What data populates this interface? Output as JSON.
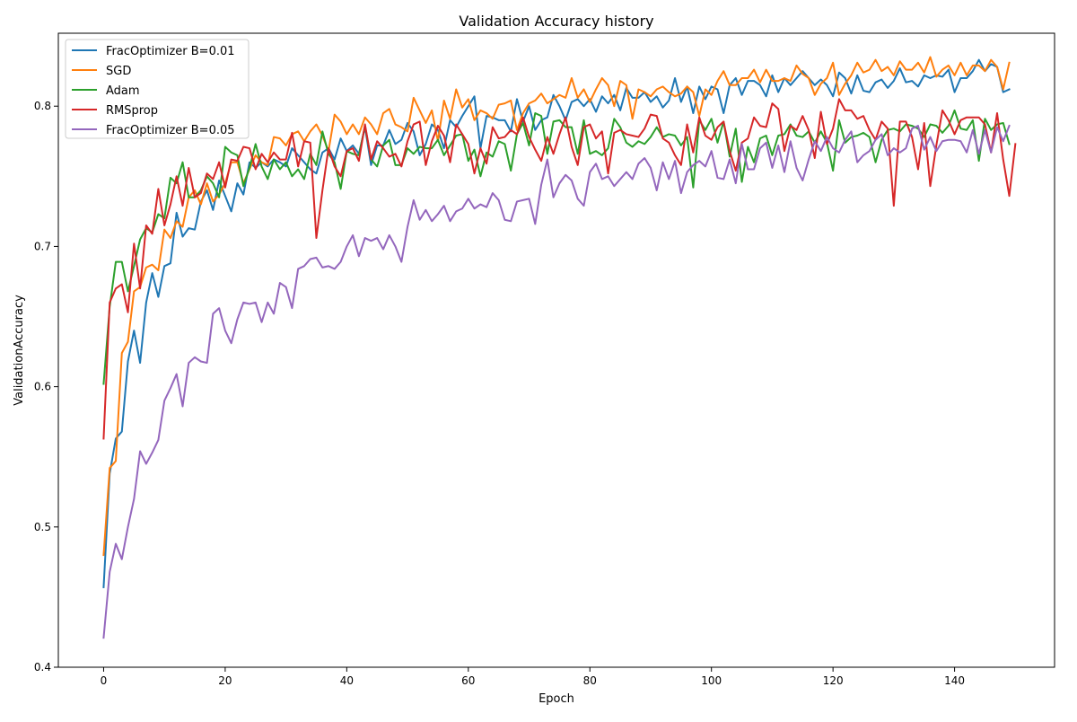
{
  "chart_data": {
    "type": "line",
    "title": "Validation Accuracy history",
    "xlabel": "Epoch",
    "ylabel": "ValidationAccuracy",
    "xlim": [
      -7.45,
      156.45
    ],
    "ylim": [
      0.4,
      0.852
    ],
    "xticks": [
      0,
      20,
      40,
      60,
      80,
      100,
      120,
      140
    ],
    "yticks": [
      0.4,
      0.5,
      0.6,
      0.7,
      0.8
    ],
    "xtick_labels": [
      "0",
      "20",
      "40",
      "60",
      "80",
      "100",
      "120",
      "140"
    ],
    "ytick_labels": [
      "0.4",
      "0.5",
      "0.6",
      "0.7",
      "0.8"
    ],
    "grid": false,
    "legend_position": "upper-left",
    "series": [
      {
        "name": "FracOptimizer B=0.01",
        "color": "#1f77b4",
        "values": [
          0.457,
          0.538,
          0.563,
          0.568,
          0.618,
          0.64,
          0.617,
          0.66,
          0.681,
          0.664,
          0.686,
          0.688,
          0.724,
          0.707,
          0.713,
          0.712,
          0.732,
          0.74,
          0.726,
          0.747,
          0.736,
          0.725,
          0.745,
          0.737,
          0.76,
          0.756,
          0.76,
          0.757,
          0.762,
          0.76,
          0.757,
          0.77,
          0.765,
          0.76,
          0.755,
          0.752,
          0.767,
          0.77,
          0.762,
          0.777,
          0.768,
          0.772,
          0.766,
          0.785,
          0.758,
          0.772,
          0.772,
          0.783,
          0.773,
          0.776,
          0.788,
          0.782,
          0.765,
          0.773,
          0.787,
          0.783,
          0.77,
          0.79,
          0.785,
          0.793,
          0.8,
          0.807,
          0.77,
          0.793,
          0.792,
          0.79,
          0.79,
          0.782,
          0.805,
          0.789,
          0.8,
          0.783,
          0.79,
          0.792,
          0.808,
          0.8,
          0.79,
          0.803,
          0.805,
          0.8,
          0.805,
          0.796,
          0.807,
          0.802,
          0.808,
          0.797,
          0.813,
          0.806,
          0.806,
          0.81,
          0.803,
          0.807,
          0.799,
          0.804,
          0.82,
          0.803,
          0.814,
          0.795,
          0.814,
          0.805,
          0.814,
          0.812,
          0.795,
          0.815,
          0.82,
          0.808,
          0.818,
          0.818,
          0.815,
          0.807,
          0.822,
          0.81,
          0.82,
          0.815,
          0.82,
          0.825,
          0.82,
          0.815,
          0.819,
          0.815,
          0.807,
          0.824,
          0.82,
          0.809,
          0.822,
          0.811,
          0.81,
          0.817,
          0.819,
          0.813,
          0.818,
          0.827,
          0.817,
          0.818,
          0.814,
          0.822,
          0.82,
          0.822,
          0.821,
          0.826,
          0.81,
          0.82,
          0.82,
          0.825,
          0.833,
          0.825,
          0.83,
          0.828,
          0.81,
          0.812
        ]
      },
      {
        "name": "SGD",
        "color": "#ff7f0e",
        "values": [
          0.48,
          0.542,
          0.547,
          0.624,
          0.632,
          0.668,
          0.671,
          0.685,
          0.687,
          0.683,
          0.712,
          0.706,
          0.718,
          0.714,
          0.735,
          0.74,
          0.73,
          0.745,
          0.732,
          0.737,
          0.745,
          0.76,
          0.76,
          0.745,
          0.755,
          0.765,
          0.76,
          0.758,
          0.778,
          0.777,
          0.772,
          0.78,
          0.782,
          0.775,
          0.782,
          0.787,
          0.779,
          0.768,
          0.794,
          0.789,
          0.78,
          0.787,
          0.78,
          0.792,
          0.787,
          0.78,
          0.795,
          0.798,
          0.787,
          0.785,
          0.782,
          0.806,
          0.797,
          0.788,
          0.797,
          0.775,
          0.804,
          0.791,
          0.812,
          0.799,
          0.805,
          0.79,
          0.797,
          0.795,
          0.791,
          0.801,
          0.802,
          0.804,
          0.783,
          0.795,
          0.802,
          0.804,
          0.809,
          0.802,
          0.805,
          0.808,
          0.806,
          0.82,
          0.806,
          0.812,
          0.803,
          0.812,
          0.82,
          0.815,
          0.8,
          0.818,
          0.815,
          0.791,
          0.812,
          0.81,
          0.807,
          0.812,
          0.814,
          0.81,
          0.807,
          0.809,
          0.814,
          0.81,
          0.793,
          0.812,
          0.808,
          0.818,
          0.825,
          0.815,
          0.815,
          0.82,
          0.82,
          0.826,
          0.817,
          0.826,
          0.818,
          0.818,
          0.82,
          0.818,
          0.829,
          0.823,
          0.82,
          0.808,
          0.816,
          0.82,
          0.831,
          0.808,
          0.816,
          0.822,
          0.831,
          0.824,
          0.826,
          0.833,
          0.825,
          0.828,
          0.822,
          0.832,
          0.826,
          0.826,
          0.831,
          0.824,
          0.835,
          0.821,
          0.826,
          0.829,
          0.822,
          0.831,
          0.822,
          0.829,
          0.829,
          0.825,
          0.833,
          0.828,
          0.812,
          0.831
        ]
      },
      {
        "name": "Adam",
        "color": "#2ca02c",
        "values": [
          0.602,
          0.657,
          0.689,
          0.689,
          0.668,
          0.686,
          0.705,
          0.713,
          0.71,
          0.723,
          0.72,
          0.749,
          0.745,
          0.76,
          0.735,
          0.735,
          0.74,
          0.75,
          0.745,
          0.735,
          0.771,
          0.767,
          0.765,
          0.743,
          0.756,
          0.773,
          0.757,
          0.748,
          0.762,
          0.755,
          0.76,
          0.75,
          0.755,
          0.748,
          0.766,
          0.758,
          0.782,
          0.766,
          0.76,
          0.741,
          0.768,
          0.766,
          0.765,
          0.786,
          0.762,
          0.757,
          0.772,
          0.776,
          0.758,
          0.758,
          0.77,
          0.766,
          0.771,
          0.77,
          0.77,
          0.776,
          0.765,
          0.772,
          0.779,
          0.78,
          0.761,
          0.769,
          0.75,
          0.767,
          0.764,
          0.775,
          0.773,
          0.754,
          0.78,
          0.788,
          0.772,
          0.795,
          0.793,
          0.766,
          0.789,
          0.79,
          0.785,
          0.785,
          0.766,
          0.79,
          0.766,
          0.768,
          0.765,
          0.77,
          0.791,
          0.785,
          0.774,
          0.771,
          0.775,
          0.773,
          0.778,
          0.785,
          0.778,
          0.78,
          0.779,
          0.772,
          0.778,
          0.742,
          0.79,
          0.783,
          0.791,
          0.774,
          0.789,
          0.764,
          0.784,
          0.746,
          0.771,
          0.76,
          0.777,
          0.779,
          0.765,
          0.779,
          0.78,
          0.787,
          0.779,
          0.778,
          0.782,
          0.774,
          0.782,
          0.774,
          0.754,
          0.79,
          0.774,
          0.778,
          0.779,
          0.781,
          0.778,
          0.76,
          0.776,
          0.783,
          0.784,
          0.782,
          0.787,
          0.786,
          0.784,
          0.778,
          0.787,
          0.786,
          0.781,
          0.786,
          0.797,
          0.784,
          0.783,
          0.79,
          0.761,
          0.791,
          0.783,
          0.787,
          0.788,
          0.773
        ]
      },
      {
        "name": "RMSprop",
        "color": "#d62728",
        "values": [
          0.563,
          0.66,
          0.67,
          0.673,
          0.653,
          0.702,
          0.67,
          0.715,
          0.709,
          0.741,
          0.715,
          0.73,
          0.75,
          0.729,
          0.756,
          0.735,
          0.738,
          0.752,
          0.748,
          0.76,
          0.742,
          0.762,
          0.761,
          0.771,
          0.77,
          0.755,
          0.766,
          0.76,
          0.767,
          0.762,
          0.762,
          0.781,
          0.757,
          0.775,
          0.774,
          0.706,
          0.74,
          0.77,
          0.757,
          0.75,
          0.768,
          0.77,
          0.761,
          0.787,
          0.762,
          0.775,
          0.77,
          0.764,
          0.766,
          0.757,
          0.775,
          0.787,
          0.789,
          0.758,
          0.775,
          0.786,
          0.779,
          0.76,
          0.787,
          0.78,
          0.773,
          0.752,
          0.77,
          0.759,
          0.785,
          0.777,
          0.778,
          0.783,
          0.78,
          0.792,
          0.778,
          0.769,
          0.761,
          0.778,
          0.766,
          0.78,
          0.792,
          0.771,
          0.758,
          0.785,
          0.787,
          0.777,
          0.782,
          0.752,
          0.781,
          0.783,
          0.78,
          0.779,
          0.778,
          0.784,
          0.794,
          0.793,
          0.777,
          0.774,
          0.765,
          0.758,
          0.787,
          0.767,
          0.792,
          0.779,
          0.776,
          0.785,
          0.789,
          0.768,
          0.754,
          0.774,
          0.777,
          0.792,
          0.786,
          0.785,
          0.802,
          0.798,
          0.768,
          0.786,
          0.783,
          0.793,
          0.783,
          0.763,
          0.796,
          0.773,
          0.784,
          0.805,
          0.797,
          0.797,
          0.791,
          0.793,
          0.783,
          0.776,
          0.789,
          0.784,
          0.729,
          0.789,
          0.789,
          0.778,
          0.755,
          0.788,
          0.743,
          0.772,
          0.797,
          0.79,
          0.78,
          0.79,
          0.792,
          0.792,
          0.792,
          0.787,
          0.767,
          0.795,
          0.762,
          0.736,
          0.773
        ]
      },
      {
        "name": "FracOptimizer B=0.05",
        "color": "#9467bd",
        "values": [
          0.421,
          0.468,
          0.488,
          0.477,
          0.5,
          0.52,
          0.554,
          0.545,
          0.553,
          0.562,
          0.59,
          0.599,
          0.609,
          0.586,
          0.617,
          0.621,
          0.618,
          0.617,
          0.652,
          0.656,
          0.64,
          0.631,
          0.648,
          0.66,
          0.659,
          0.66,
          0.646,
          0.66,
          0.652,
          0.674,
          0.671,
          0.656,
          0.684,
          0.686,
          0.691,
          0.692,
          0.685,
          0.686,
          0.684,
          0.689,
          0.7,
          0.708,
          0.693,
          0.706,
          0.704,
          0.706,
          0.698,
          0.708,
          0.7,
          0.689,
          0.714,
          0.733,
          0.719,
          0.726,
          0.718,
          0.723,
          0.729,
          0.718,
          0.725,
          0.727,
          0.734,
          0.727,
          0.73,
          0.728,
          0.738,
          0.733,
          0.719,
          0.718,
          0.732,
          0.733,
          0.734,
          0.716,
          0.744,
          0.762,
          0.735,
          0.745,
          0.751,
          0.747,
          0.734,
          0.729,
          0.753,
          0.759,
          0.748,
          0.75,
          0.743,
          0.748,
          0.753,
          0.748,
          0.759,
          0.763,
          0.756,
          0.74,
          0.76,
          0.748,
          0.761,
          0.738,
          0.753,
          0.758,
          0.761,
          0.757,
          0.768,
          0.749,
          0.748,
          0.762,
          0.745,
          0.773,
          0.755,
          0.755,
          0.77,
          0.774,
          0.756,
          0.772,
          0.753,
          0.775,
          0.756,
          0.747,
          0.762,
          0.775,
          0.768,
          0.778,
          0.77,
          0.767,
          0.776,
          0.782,
          0.76,
          0.765,
          0.768,
          0.776,
          0.78,
          0.765,
          0.77,
          0.767,
          0.77,
          0.784,
          0.786,
          0.769,
          0.778,
          0.768,
          0.775,
          0.776,
          0.776,
          0.775,
          0.767,
          0.783,
          0.766,
          0.783,
          0.767,
          0.785,
          0.775,
          0.786
        ]
      }
    ]
  }
}
